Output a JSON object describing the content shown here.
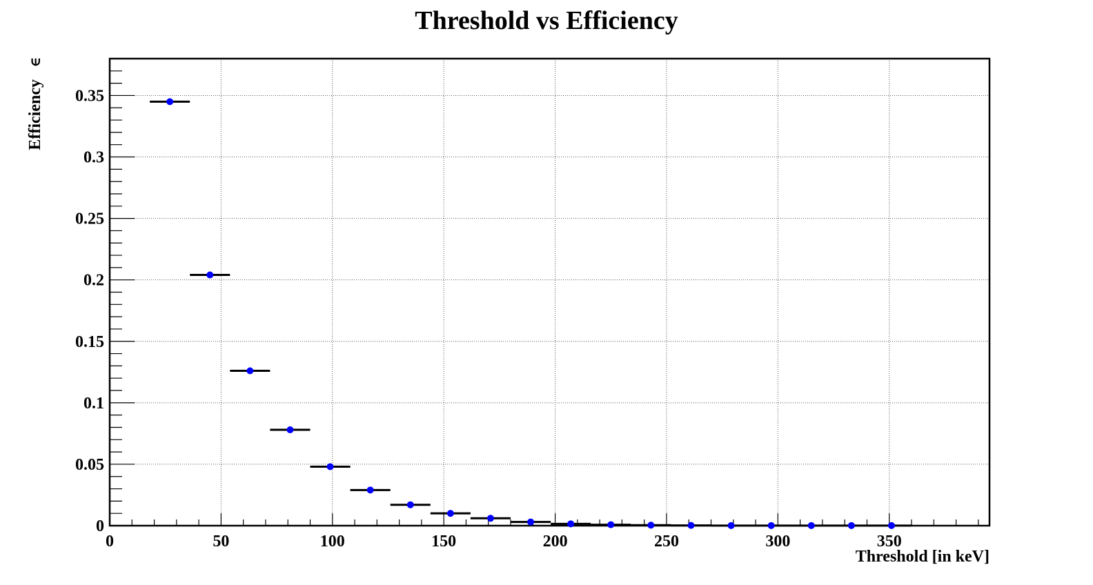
{
  "chart_data": {
    "type": "scatter",
    "title": "Threshold vs Efficiency",
    "xlabel": "Threshold [in keV]",
    "ylabel": "Efficiency",
    "ylabel_symbol": "∈",
    "xlim": [
      0,
      395
    ],
    "ylim": [
      0,
      0.38
    ],
    "xticks": [
      0,
      50,
      100,
      150,
      200,
      250,
      300,
      350
    ],
    "xtick_labels": [
      "0",
      "50",
      "100",
      "150",
      "200",
      "250",
      "300",
      "350"
    ],
    "yticks": [
      0,
      0.05,
      0.1,
      0.15,
      0.2,
      0.25,
      0.3,
      0.35
    ],
    "ytick_labels": [
      "0",
      "0.05",
      "0.1",
      "0.15",
      "0.2",
      "0.25",
      "0.3",
      "0.35"
    ],
    "grid": true,
    "marker_color": "#0000ff",
    "error_bar_color": "#000000",
    "x_error": 9,
    "series": [
      {
        "x": [
          27,
          45,
          63,
          81,
          99,
          117,
          135,
          153,
          171,
          189,
          207,
          225,
          243,
          261,
          279,
          297,
          315,
          333,
          351
        ],
        "y": [
          0.345,
          0.204,
          0.126,
          0.078,
          0.048,
          0.029,
          0.017,
          0.01,
          0.006,
          0.003,
          0.0015,
          0.0008,
          0.0004,
          0.0002,
          0.0001,
          0.0001,
          0.0001,
          0.0001,
          0.0001
        ]
      }
    ]
  }
}
